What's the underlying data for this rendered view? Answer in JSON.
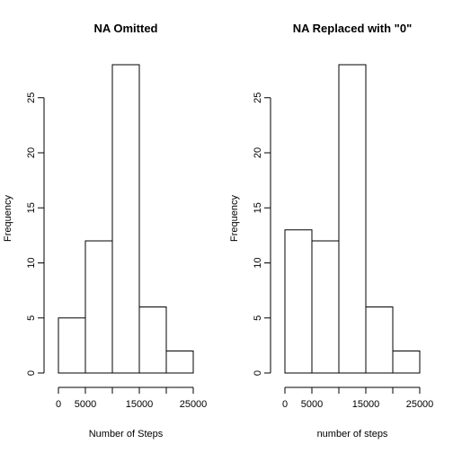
{
  "chart_data": [
    {
      "type": "bar",
      "title": "NA Omitted",
      "xlabel": "Number of Steps",
      "ylabel": "Frequency",
      "bins": [
        {
          "start": 0,
          "end": 5000,
          "value": 5
        },
        {
          "start": 5000,
          "end": 10000,
          "value": 12
        },
        {
          "start": 10000,
          "end": 15000,
          "value": 28
        },
        {
          "start": 15000,
          "end": 20000,
          "value": 6
        },
        {
          "start": 20000,
          "end": 25000,
          "value": 2
        }
      ],
      "xlim": [
        0,
        25000
      ],
      "ylim": [
        0,
        28
      ],
      "x_ticks": [
        0,
        5000,
        10000,
        15000,
        20000,
        25000
      ],
      "x_tick_labels": [
        "0",
        "5000",
        "",
        "15000",
        "",
        "25000"
      ],
      "y_ticks": [
        0,
        5,
        10,
        15,
        20,
        25
      ],
      "y_tick_labels": [
        "0",
        "5",
        "10",
        "15",
        "20",
        "25"
      ],
      "grid": false
    },
    {
      "type": "bar",
      "title": "NA Replaced with \"0\"",
      "xlabel": "number of steps",
      "ylabel": "Frequency",
      "bins": [
        {
          "start": 0,
          "end": 5000,
          "value": 13
        },
        {
          "start": 5000,
          "end": 10000,
          "value": 12
        },
        {
          "start": 10000,
          "end": 15000,
          "value": 28
        },
        {
          "start": 15000,
          "end": 20000,
          "value": 6
        },
        {
          "start": 20000,
          "end": 25000,
          "value": 2
        }
      ],
      "xlim": [
        0,
        25000
      ],
      "ylim": [
        0,
        28
      ],
      "x_ticks": [
        0,
        5000,
        10000,
        15000,
        20000,
        25000
      ],
      "x_tick_labels": [
        "0",
        "5000",
        "",
        "15000",
        "",
        "25000"
      ],
      "y_ticks": [
        0,
        5,
        10,
        15,
        20,
        25
      ],
      "y_tick_labels": [
        "0",
        "5",
        "10",
        "15",
        "20",
        "25"
      ],
      "grid": false
    }
  ]
}
